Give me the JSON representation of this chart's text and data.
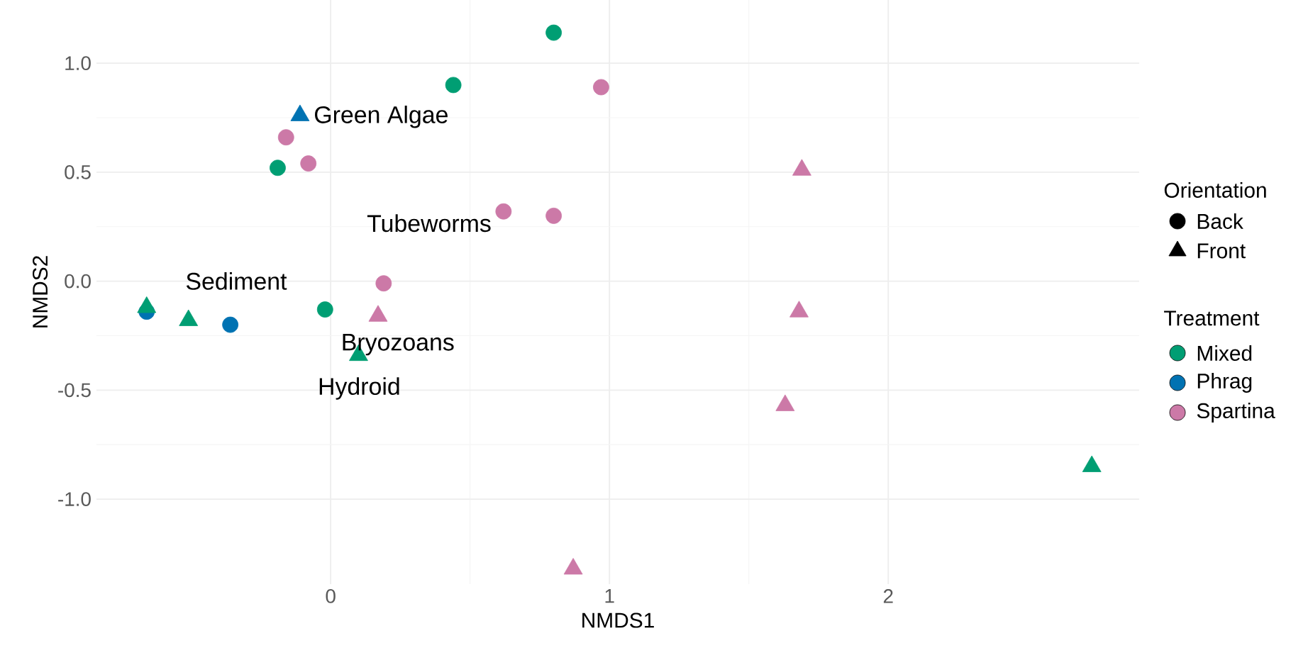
{
  "chart_data": {
    "type": "scatter",
    "xlabel": "NMDS1",
    "ylabel": "NMDS2",
    "legend_title": "Treatment",
    "xlim": [
      -0.84,
      2.9
    ],
    "ylim": [
      -1.39,
      1.29
    ],
    "xticks": [
      0,
      1,
      2
    ],
    "yticks": [
      {
        "value": -1.0,
        "label": "-1.0"
      },
      {
        "value": -0.5,
        "label": "-0.5"
      },
      {
        "value": 0.0,
        "label": "0.0"
      },
      {
        "value": 0.5,
        "label": "0.5"
      },
      {
        "value": 1.0,
        "label": "1.0"
      }
    ],
    "grid": true,
    "legend": "right",
    "series": [
      {
        "name": "Mixed",
        "color": "#009e73",
        "marker": "circle",
        "x": [
          0.8,
          0.44,
          -0.19,
          -0.02
        ],
        "values": [
          1.14,
          0.9,
          0.52,
          -0.13
        ]
      },
      {
        "name": "Phrag",
        "color": "#0072b2",
        "marker": "circle",
        "x": [
          -0.66,
          -0.36
        ],
        "values": [
          -0.14,
          -0.2
        ]
      },
      {
        "name": "Spartina",
        "color": "#cc79a7",
        "marker": "circle",
        "x": [
          -0.16,
          -0.08,
          0.97,
          0.62,
          0.8,
          0.19
        ],
        "values": [
          0.66,
          0.54,
          0.89,
          0.32,
          0.3,
          -0.01
        ]
      },
      {
        "color": "#009e73",
        "marker": "triangle",
        "x": [
          -0.66,
          -0.51,
          0.1,
          2.73
        ],
        "values": [
          -0.12,
          -0.18,
          -0.34,
          -0.85
        ]
      },
      {
        "color": "#0072b2",
        "marker": "triangle",
        "x": [
          -0.11
        ],
        "values": [
          0.76
        ]
      },
      {
        "color": "#cc79a7",
        "marker": "triangle",
        "x": [
          1.69,
          1.68,
          1.63,
          0.17,
          0.87
        ],
        "values": [
          0.51,
          -0.14,
          -0.57,
          -0.16,
          -1.32
        ]
      }
    ],
    "annotations": [
      "Orientation",
      "Back",
      "Front",
      "Green Algae",
      "Tubeworms",
      "Sediment",
      "Bryozoans",
      "Hydroid"
    ]
  }
}
